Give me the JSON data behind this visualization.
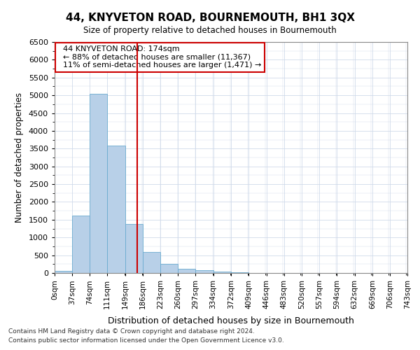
{
  "title": "44, KNYVETON ROAD, BOURNEMOUTH, BH1 3QX",
  "subtitle": "Size of property relative to detached houses in Bournemouth",
  "xlabel": "Distribution of detached houses by size in Bournemouth",
  "ylabel": "Number of detached properties",
  "footnote1": "Contains HM Land Registry data © Crown copyright and database right 2024.",
  "footnote2": "Contains public sector information licensed under the Open Government Licence v3.0.",
  "annotation_title": "44 KNYVETON ROAD: 174sqm",
  "annotation_line1": "← 88% of detached houses are smaller (11,367)",
  "annotation_line2": "11% of semi-detached houses are larger (1,471) →",
  "property_size": 174,
  "bin_edges": [
    0,
    37,
    74,
    111,
    149,
    186,
    223,
    260,
    297,
    334,
    372,
    409,
    446,
    483,
    520,
    557,
    594,
    632,
    669,
    706,
    743
  ],
  "bar_heights": [
    50,
    1620,
    5050,
    3580,
    1380,
    590,
    265,
    115,
    75,
    35,
    10,
    5,
    3,
    2,
    1,
    1,
    1,
    0,
    0,
    0
  ],
  "bar_color": "#b8d0e8",
  "bar_edge_color": "#6aabcf",
  "vline_color": "#cc0000",
  "annotation_box_color": "#cc0000",
  "background_color": "#ffffff",
  "grid_color": "#d0daea",
  "ylim": [
    0,
    6500
  ],
  "yticks": [
    0,
    500,
    1000,
    1500,
    2000,
    2500,
    3000,
    3500,
    4000,
    4500,
    5000,
    5500,
    6000,
    6500
  ]
}
